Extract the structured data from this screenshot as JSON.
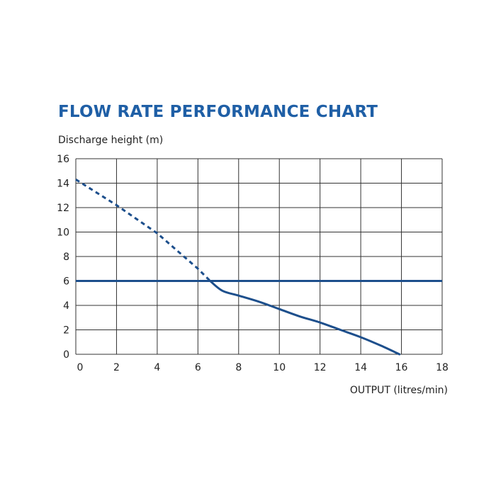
{
  "chart_data": {
    "type": "line",
    "title": "FLOW RATE PERFORMANCE CHART",
    "xlabel": "OUTPUT (litres/min)",
    "ylabel": "Discharge height (m)",
    "xlim": [
      0,
      18
    ],
    "ylim": [
      0,
      16
    ],
    "x_ticks": [
      "0",
      "2",
      "4",
      "6",
      "8",
      "10",
      "12",
      "14",
      "16",
      "18"
    ],
    "y_ticks": [
      "0",
      "2",
      "4",
      "6",
      "8",
      "10",
      "12",
      "14",
      "16"
    ],
    "grid": true,
    "series": [
      {
        "style": "dashed",
        "x": [
          0,
          2,
          4,
          6,
          6.6
        ],
        "y": [
          14.3,
          12.2,
          9.9,
          7.0,
          6.0
        ]
      },
      {
        "style": "solid",
        "x": [
          6.6,
          7.2,
          8,
          9,
          10,
          11,
          12,
          13,
          14,
          15,
          15.9
        ],
        "y": [
          6.0,
          5.2,
          4.8,
          4.3,
          3.7,
          3.1,
          2.6,
          2.0,
          1.4,
          0.7,
          0.0
        ]
      },
      {
        "style": "reference",
        "x": [
          0,
          18
        ],
        "y": [
          6,
          6
        ]
      }
    ]
  },
  "colors": {
    "title": "#1f5fa6",
    "line": "#1d4f8c",
    "grid": "#333333",
    "text": "#222222"
  }
}
